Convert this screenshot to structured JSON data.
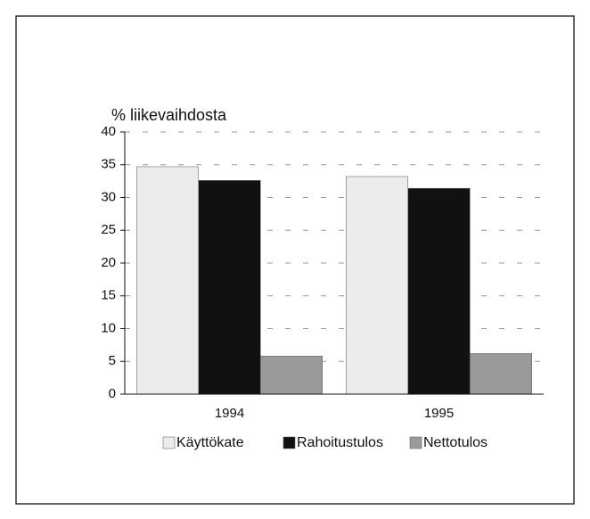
{
  "chart_data": {
    "type": "bar",
    "y_label": "% liikevaihdosta",
    "categories": [
      "1994",
      "1995"
    ],
    "series": [
      {
        "name": "Käyttökate",
        "color": "#ececec",
        "values": [
          34.7,
          33.2
        ]
      },
      {
        "name": "Rahoitustulos",
        "color": "#111111",
        "values": [
          32.6,
          31.4
        ]
      },
      {
        "name": "Nettotulos",
        "color": "#9a9a9a",
        "values": [
          5.8,
          6.2
        ]
      }
    ],
    "ylim": [
      0,
      40
    ],
    "yticks": [
      0,
      5,
      10,
      15,
      20,
      25,
      30,
      35,
      40
    ],
    "grid": true,
    "legend": "bottom"
  }
}
